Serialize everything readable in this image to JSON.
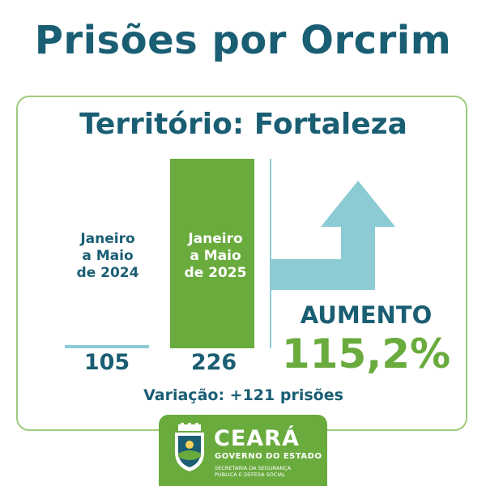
{
  "header": {
    "title": "Prisões por Orcrim"
  },
  "card": {
    "title": "Território: Fortaleza",
    "aumento_label": "AUMENTO",
    "aumento_value": "115,2%",
    "variacao": "Variação: +121 prisões"
  },
  "chart_data": {
    "type": "bar",
    "categories": [
      "Janeiro a Maio de 2024",
      "Janeiro a Maio de 2025"
    ],
    "category_lines": [
      [
        "Janeiro",
        "a Maio",
        "de 2024"
      ],
      [
        "Janeiro",
        "a Maio",
        "de 2025"
      ]
    ],
    "values": [
      105,
      226
    ],
    "value_labels": [
      "105",
      "226"
    ],
    "ylim": [
      0,
      226
    ],
    "colors": {
      "bar_2024": "#8ccbd3",
      "bar_2025": "#6aab3e",
      "arrow": "#8ccbd3"
    }
  },
  "logo": {
    "name": "CEARÁ",
    "subtitle": "GOVERNO DO ESTADO",
    "secretaria_line1": "SECRETARIA DA SEGURANÇA",
    "secretaria_line2": "PÚBLICA E DEFESA SOCIAL"
  },
  "colors": {
    "primary": "#1a5e73",
    "accent_green": "#6aab3e",
    "border": "#9fcb7c"
  }
}
